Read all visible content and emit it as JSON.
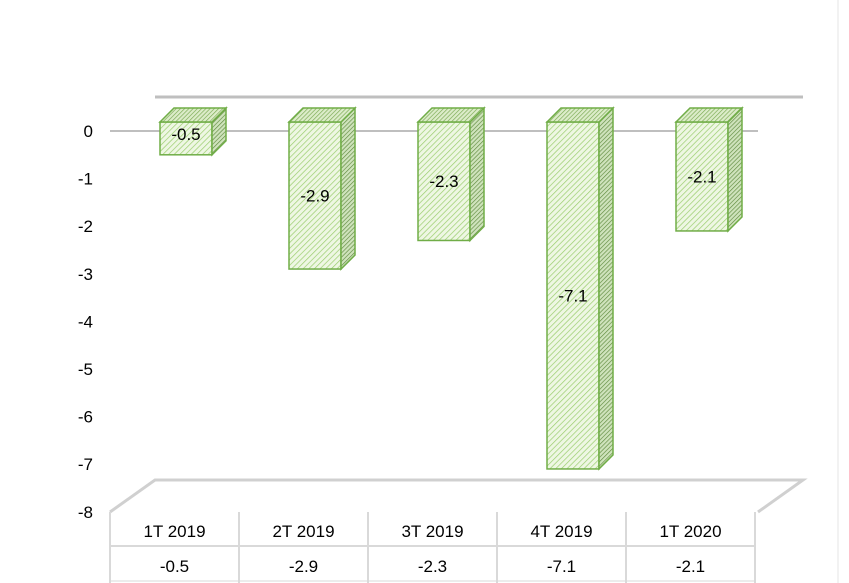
{
  "chart_data": {
    "type": "bar",
    "categories": [
      "1T 2019",
      "2T 2019",
      "3T 2019",
      "4T 2019",
      "1T 2020"
    ],
    "values": [
      -0.5,
      -2.9,
      -2.3,
      -7.1,
      -2.1
    ],
    "data_labels": [
      "-0.5",
      "-2.9",
      "-2.3",
      "-7.1",
      "-2.1"
    ],
    "table_values": [
      "-0.5",
      "-2.9",
      "-2.3",
      "-7.1",
      "-2.1"
    ],
    "y_ticks": [
      "0",
      "-1",
      "-2",
      "-3",
      "-4",
      "-5",
      "-6",
      "-7",
      "-8"
    ],
    "ylim": [
      -8,
      0
    ],
    "title": "",
    "xlabel": "",
    "ylabel": "",
    "style": "3d-clustered-column-with-data-table",
    "grid": false,
    "legend": "none",
    "colors": {
      "bar_fill": "#e6f3d6",
      "bar_hatch": "#8cc063",
      "bar_edge": "#70ad47",
      "bar_side": "#6b8f4e",
      "axis": "#bfbfbf",
      "table_line": "#d9d9d9"
    }
  }
}
